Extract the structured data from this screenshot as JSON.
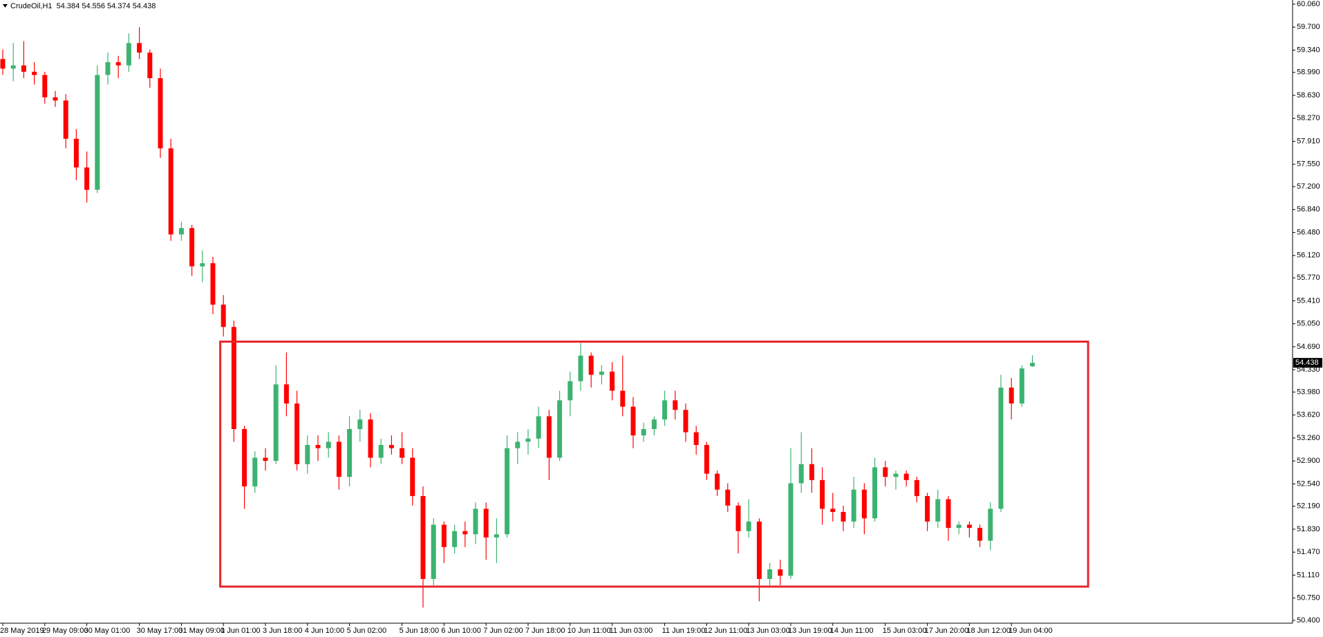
{
  "chart_data": {
    "type": "candlestick",
    "title": "CrudeOil,H1  54.384 54.556 54.374 54.438",
    "categories": [
      "28 May 2019",
      null,
      null,
      null,
      "29 May 09:00",
      null,
      null,
      null,
      "30 May 01:00",
      null,
      null,
      null,
      null,
      "30 May 17:00",
      null,
      null,
      null,
      "31 May 09:00",
      null,
      null,
      null,
      "1 Jun 01:00",
      null,
      null,
      null,
      "3 Jun 18:00",
      null,
      null,
      null,
      "4 Jun 10:00",
      null,
      null,
      null,
      "5 Jun 02:00",
      null,
      null,
      null,
      null,
      "5 Jun 18:00",
      null,
      null,
      null,
      "6 Jun 10:00",
      null,
      null,
      null,
      "7 Jun 02:00",
      null,
      null,
      null,
      "7 Jun 18:00",
      null,
      null,
      null,
      "10 Jun 11:00",
      null,
      null,
      null,
      "11 Jun 03:00",
      null,
      null,
      null,
      null,
      "11 Jun 19:00",
      null,
      null,
      null,
      "12 Jun 11:00",
      null,
      null,
      null,
      "13 Jun 03:00",
      null,
      null,
      null,
      "13 Jun 19:00",
      null,
      null,
      null,
      "14 Jun 11:00",
      null,
      null,
      null,
      null,
      "15 Jun 03:00",
      null,
      null,
      null,
      "17 Jun 20:00",
      null,
      null,
      null,
      "18 Jun 12:00",
      null,
      null,
      null,
      "19 Jun 04:00",
      null,
      null
    ],
    "open": [
      59.2,
      59.05,
      59.1,
      59.0,
      58.95,
      58.6,
      58.55,
      57.95,
      57.5,
      57.15,
      58.95,
      59.15,
      59.1,
      59.45,
      59.3,
      58.9,
      57.8,
      56.45,
      56.55,
      55.95,
      56.0,
      55.35,
      55.0,
      53.4,
      52.5,
      52.95,
      52.9,
      54.1,
      53.8,
      52.85,
      53.15,
      53.1,
      53.2,
      52.65,
      53.4,
      53.55,
      52.95,
      53.15,
      53.1,
      52.95,
      52.35,
      51.05,
      51.9,
      51.55,
      51.8,
      51.75,
      52.15,
      51.7,
      51.75,
      53.1,
      53.2,
      53.25,
      53.6,
      52.95,
      53.85,
      54.15,
      54.55,
      54.25,
      54.3,
      54.0,
      53.75,
      53.3,
      53.4,
      53.55,
      53.85,
      53.7,
      53.35,
      53.15,
      52.7,
      52.45,
      52.2,
      51.8,
      51.95,
      51.05,
      51.2,
      51.1,
      52.55,
      52.85,
      52.6,
      52.15,
      52.1,
      51.95,
      52.45,
      52.0,
      52.8,
      52.65,
      52.7,
      52.6,
      52.35,
      51.95,
      52.3,
      51.85,
      51.9,
      51.85,
      51.65,
      52.15,
      54.05,
      53.8,
      54.384
    ],
    "high": [
      59.35,
      59.45,
      59.48,
      59.15,
      59.0,
      58.7,
      58.65,
      58.1,
      57.75,
      59.1,
      59.3,
      59.25,
      59.6,
      59.7,
      59.35,
      59.05,
      57.95,
      56.65,
      56.6,
      56.2,
      56.1,
      55.5,
      55.1,
      53.45,
      53.05,
      53.1,
      54.4,
      54.6,
      54.0,
      53.3,
      53.3,
      53.35,
      53.3,
      53.6,
      53.7,
      53.65,
      53.25,
      53.3,
      53.35,
      53.1,
      52.5,
      52.0,
      51.95,
      51.9,
      51.95,
      52.25,
      52.25,
      52.0,
      53.3,
      53.35,
      53.4,
      53.75,
      53.7,
      54.0,
      54.3,
      54.75,
      54.6,
      54.4,
      54.45,
      54.55,
      53.9,
      53.5,
      53.6,
      54.0,
      54.0,
      53.8,
      53.45,
      53.2,
      52.75,
      52.55,
      52.25,
      52.3,
      52.0,
      51.3,
      51.35,
      53.1,
      53.35,
      53.1,
      52.8,
      52.4,
      52.2,
      52.65,
      52.55,
      52.95,
      52.9,
      52.75,
      52.75,
      52.65,
      52.4,
      52.45,
      52.35,
      51.95,
      51.95,
      51.9,
      52.25,
      54.25,
      54.2,
      54.4,
      54.556
    ],
    "low": [
      58.95,
      58.85,
      58.9,
      58.8,
      58.5,
      58.45,
      57.8,
      57.3,
      56.95,
      57.1,
      58.8,
      58.9,
      59.0,
      59.2,
      58.75,
      57.65,
      56.35,
      56.35,
      55.8,
      55.7,
      55.2,
      54.85,
      53.2,
      52.15,
      52.4,
      52.75,
      52.85,
      53.6,
      52.75,
      52.7,
      52.9,
      52.95,
      52.45,
      52.5,
      53.2,
      52.8,
      52.85,
      53.0,
      52.85,
      52.2,
      50.6,
      50.95,
      51.3,
      51.45,
      51.55,
      51.6,
      51.35,
      51.3,
      51.7,
      52.85,
      53.0,
      53.1,
      52.6,
      52.9,
      53.6,
      54.0,
      54.05,
      54.1,
      53.85,
      53.6,
      53.1,
      53.2,
      53.3,
      53.45,
      53.55,
      53.2,
      53.0,
      52.6,
      52.35,
      52.1,
      51.45,
      51.7,
      50.7,
      50.95,
      50.95,
      51.05,
      52.4,
      52.4,
      51.9,
      51.95,
      51.8,
      51.85,
      51.75,
      51.95,
      52.5,
      52.45,
      52.5,
      52.25,
      51.8,
      51.85,
      51.65,
      51.75,
      51.7,
      51.55,
      51.5,
      52.1,
      53.55,
      53.75,
      54.374
    ],
    "close": [
      59.05,
      59.1,
      59.0,
      58.95,
      58.6,
      58.55,
      57.95,
      57.5,
      57.15,
      58.95,
      59.15,
      59.1,
      59.45,
      59.3,
      58.9,
      57.8,
      56.45,
      56.55,
      55.95,
      56.0,
      55.35,
      55.0,
      53.4,
      52.5,
      52.95,
      52.9,
      54.1,
      53.8,
      52.85,
      53.15,
      53.1,
      53.2,
      52.65,
      53.4,
      53.55,
      52.95,
      53.15,
      53.1,
      52.95,
      52.35,
      51.05,
      51.9,
      51.55,
      51.8,
      51.75,
      52.15,
      51.7,
      51.75,
      53.1,
      53.2,
      53.25,
      53.6,
      52.95,
      53.85,
      54.15,
      54.55,
      54.25,
      54.3,
      54.0,
      53.75,
      53.3,
      53.4,
      53.55,
      53.85,
      53.7,
      53.35,
      53.15,
      52.7,
      52.45,
      52.2,
      51.8,
      51.95,
      51.05,
      51.2,
      51.1,
      52.55,
      52.85,
      52.6,
      52.15,
      52.1,
      51.95,
      52.45,
      52.0,
      52.8,
      52.65,
      52.7,
      52.6,
      52.35,
      51.95,
      52.3,
      51.85,
      51.9,
      51.85,
      51.65,
      52.15,
      54.05,
      53.8,
      54.35,
      54.438
    ],
    "up_color": "#3cb371",
    "down_color": "#ff0000",
    "ylim": [
      50.4,
      60.06
    ],
    "yticks": [
      {
        "value": 60.06,
        "label": "60.060"
      },
      {
        "value": 59.7,
        "label": "59.700"
      },
      {
        "value": 59.34,
        "label": "59.340"
      },
      {
        "value": 58.99,
        "label": "58.990"
      },
      {
        "value": 58.63,
        "label": "58.630"
      },
      {
        "value": 58.27,
        "label": "58.270"
      },
      {
        "value": 57.91,
        "label": "57.910"
      },
      {
        "value": 57.55,
        "label": "57.550"
      },
      {
        "value": 57.2,
        "label": "57.200"
      },
      {
        "value": 56.84,
        "label": "56.840"
      },
      {
        "value": 56.48,
        "label": "56.480"
      },
      {
        "value": 56.12,
        "label": "56.120"
      },
      {
        "value": 55.77,
        "label": "55.770"
      },
      {
        "value": 55.41,
        "label": "55.410"
      },
      {
        "value": 55.05,
        "label": "55.050"
      },
      {
        "value": 54.69,
        "label": "54.690"
      },
      {
        "value": 54.33,
        "label": "54.330"
      },
      {
        "value": 53.98,
        "label": "53.980"
      },
      {
        "value": 53.62,
        "label": "53.620"
      },
      {
        "value": 53.26,
        "label": "53.260"
      },
      {
        "value": 52.9,
        "label": "52.900"
      },
      {
        "value": 52.54,
        "label": "52.540"
      },
      {
        "value": 52.19,
        "label": "52.190"
      },
      {
        "value": 51.83,
        "label": "51.830"
      },
      {
        "value": 51.47,
        "label": "51.470"
      },
      {
        "value": 51.11,
        "label": "51.110"
      },
      {
        "value": 50.75,
        "label": "50.750"
      },
      {
        "value": 50.4,
        "label": "50.400"
      }
    ],
    "last_price": 54.438,
    "rectangle": {
      "x": [
        20.7,
        103.3
      ],
      "y": [
        50.93,
        54.77
      ],
      "color": "#e8262a"
    }
  }
}
